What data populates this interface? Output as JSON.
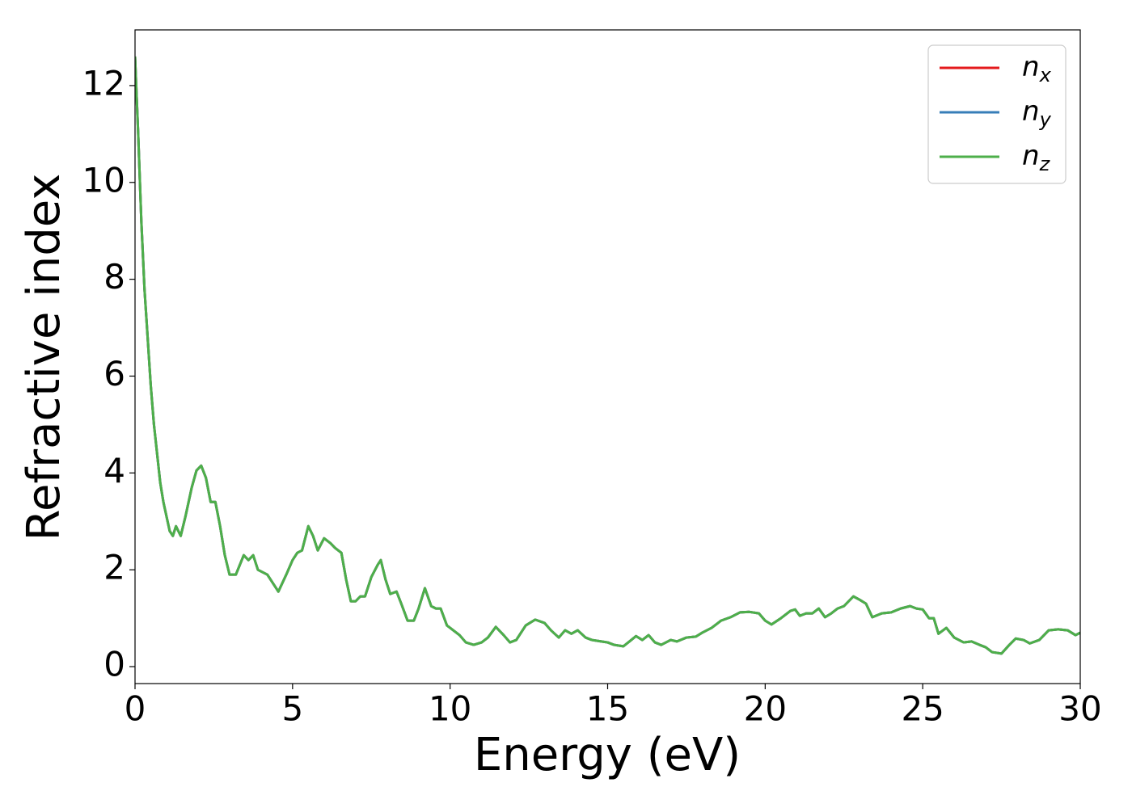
{
  "chart_data": {
    "type": "line",
    "xlabel": "Energy (eV)",
    "ylabel": "Refractive index",
    "xlim": [
      0,
      30
    ],
    "xticks": [
      0,
      5,
      10,
      15,
      20,
      25,
      30
    ],
    "ylim": [
      -0.35,
      13.15
    ],
    "yticks": [
      0,
      2,
      4,
      6,
      8,
      10,
      12
    ],
    "grid": false,
    "legend": "upper right",
    "x": [
      0,
      0.1,
      0.2,
      0.3,
      0.4,
      0.5,
      0.6,
      0.7,
      0.8,
      0.9,
      1.0,
      1.1,
      1.2,
      1.3,
      1.45,
      1.6,
      1.8,
      1.95,
      2.1,
      2.25,
      2.4,
      2.55,
      2.7,
      2.85,
      3.0,
      3.2,
      3.45,
      3.6,
      3.75,
      3.9,
      4.05,
      4.2,
      4.4,
      4.55,
      4.8,
      5.0,
      5.15,
      5.3,
      5.5,
      5.65,
      5.8,
      6.0,
      6.2,
      6.35,
      6.55,
      6.7,
      6.85,
      7.0,
      7.15,
      7.3,
      7.5,
      7.7,
      7.8,
      7.95,
      8.1,
      8.3,
      8.45,
      8.65,
      8.85,
      9.0,
      9.2,
      9.4,
      9.55,
      9.7,
      9.9,
      10.1,
      10.3,
      10.5,
      10.75,
      11.0,
      11.2,
      11.45,
      11.7,
      11.9,
      12.1,
      12.4,
      12.7,
      13.0,
      13.2,
      13.45,
      13.65,
      13.85,
      14.05,
      14.3,
      14.5,
      14.8,
      15.0,
      15.2,
      15.5,
      15.75,
      15.9,
      16.1,
      16.3,
      16.5,
      16.7,
      17.0,
      17.2,
      17.5,
      17.8,
      18.0,
      18.3,
      18.6,
      18.9,
      19.2,
      19.5,
      19.8,
      20.0,
      20.2,
      20.5,
      20.8,
      20.95,
      21.1,
      21.3,
      21.5,
      21.7,
      21.9,
      22.1,
      22.3,
      22.5,
      22.8,
      23.0,
      23.2,
      23.4,
      23.7,
      24.0,
      24.3,
      24.6,
      24.8,
      25.0,
      25.2,
      25.35,
      25.5,
      25.75,
      26.0,
      26.3,
      26.55,
      26.8,
      27.0,
      27.2,
      27.5,
      27.75,
      27.95,
      28.2,
      28.4,
      28.7,
      29.0,
      29.3,
      29.6,
      29.85,
      30.0
    ],
    "series": [
      {
        "name": "nx",
        "color": "#e41a1c",
        "values": [
          12.6,
          11,
          9.2,
          7.8,
          6.8,
          5.8,
          5.0,
          4.4,
          3.8,
          3.4,
          3.1,
          2.8,
          2.7,
          2.9,
          2.7,
          3.1,
          3.7,
          4.05,
          4.15,
          3.9,
          3.4,
          3.4,
          2.9,
          2.3,
          1.9,
          1.9,
          2.3,
          2.2,
          2.3,
          2.0,
          1.95,
          1.9,
          1.7,
          1.55,
          1.9,
          2.2,
          2.35,
          2.4,
          2.9,
          2.7,
          2.4,
          2.65,
          2.55,
          2.45,
          2.35,
          1.8,
          1.35,
          1.35,
          1.45,
          1.45,
          1.85,
          2.1,
          2.2,
          1.8,
          1.5,
          1.55,
          1.3,
          0.95,
          0.95,
          1.2,
          1.62,
          1.25,
          1.2,
          1.2,
          0.85,
          0.75,
          0.65,
          0.5,
          0.45,
          0.5,
          0.6,
          0.82,
          0.65,
          0.5,
          0.55,
          0.85,
          0.97,
          0.9,
          0.75,
          0.6,
          0.75,
          0.68,
          0.75,
          0.6,
          0.55,
          0.52,
          0.5,
          0.45,
          0.42,
          0.55,
          0.63,
          0.55,
          0.65,
          0.5,
          0.45,
          0.55,
          0.52,
          0.6,
          0.62,
          0.7,
          0.8,
          0.95,
          1.02,
          1.12,
          1.13,
          1.1,
          0.95,
          0.87,
          1.0,
          1.15,
          1.18,
          1.05,
          1.1,
          1.1,
          1.2,
          1.02,
          1.1,
          1.2,
          1.25,
          1.45,
          1.38,
          1.3,
          1.02,
          1.1,
          1.12,
          1.2,
          1.25,
          1.2,
          1.18,
          1.0,
          1.0,
          0.68,
          0.8,
          0.6,
          0.5,
          0.52,
          0.45,
          0.4,
          0.3,
          0.27,
          0.45,
          0.58,
          0.55,
          0.48,
          0.55,
          0.75,
          0.77,
          0.75,
          0.65,
          0.7
        ]
      },
      {
        "name": "ny",
        "color": "#377eb8",
        "values": [
          12.6,
          11,
          9.2,
          7.8,
          6.8,
          5.8,
          5.0,
          4.4,
          3.8,
          3.4,
          3.1,
          2.8,
          2.7,
          2.9,
          2.7,
          3.1,
          3.7,
          4.05,
          4.15,
          3.9,
          3.4,
          3.4,
          2.9,
          2.3,
          1.9,
          1.9,
          2.3,
          2.2,
          2.3,
          2.0,
          1.95,
          1.9,
          1.7,
          1.55,
          1.9,
          2.2,
          2.35,
          2.4,
          2.9,
          2.7,
          2.4,
          2.65,
          2.55,
          2.45,
          2.35,
          1.8,
          1.35,
          1.35,
          1.45,
          1.45,
          1.85,
          2.1,
          2.2,
          1.8,
          1.5,
          1.55,
          1.3,
          0.95,
          0.95,
          1.2,
          1.62,
          1.25,
          1.2,
          1.2,
          0.85,
          0.75,
          0.65,
          0.5,
          0.45,
          0.5,
          0.6,
          0.82,
          0.65,
          0.5,
          0.55,
          0.85,
          0.97,
          0.9,
          0.75,
          0.6,
          0.75,
          0.68,
          0.75,
          0.6,
          0.55,
          0.52,
          0.5,
          0.45,
          0.42,
          0.55,
          0.63,
          0.55,
          0.65,
          0.5,
          0.45,
          0.55,
          0.52,
          0.6,
          0.62,
          0.7,
          0.8,
          0.95,
          1.02,
          1.12,
          1.13,
          1.1,
          0.95,
          0.87,
          1.0,
          1.15,
          1.18,
          1.05,
          1.1,
          1.1,
          1.2,
          1.02,
          1.1,
          1.2,
          1.25,
          1.45,
          1.38,
          1.3,
          1.02,
          1.1,
          1.12,
          1.2,
          1.25,
          1.2,
          1.18,
          1.0,
          1.0,
          0.68,
          0.8,
          0.6,
          0.5,
          0.52,
          0.45,
          0.4,
          0.3,
          0.27,
          0.45,
          0.58,
          0.55,
          0.48,
          0.55,
          0.75,
          0.77,
          0.75,
          0.65,
          0.7
        ]
      },
      {
        "name": "nz",
        "color": "#4daf4a",
        "values": [
          12.6,
          11,
          9.2,
          7.8,
          6.8,
          5.8,
          5.0,
          4.4,
          3.8,
          3.4,
          3.1,
          2.8,
          2.7,
          2.9,
          2.7,
          3.1,
          3.7,
          4.05,
          4.15,
          3.9,
          3.4,
          3.4,
          2.9,
          2.3,
          1.9,
          1.9,
          2.3,
          2.2,
          2.3,
          2.0,
          1.95,
          1.9,
          1.7,
          1.55,
          1.9,
          2.2,
          2.35,
          2.4,
          2.9,
          2.7,
          2.4,
          2.65,
          2.55,
          2.45,
          2.35,
          1.8,
          1.35,
          1.35,
          1.45,
          1.45,
          1.85,
          2.1,
          2.2,
          1.8,
          1.5,
          1.55,
          1.3,
          0.95,
          0.95,
          1.2,
          1.62,
          1.25,
          1.2,
          1.2,
          0.85,
          0.75,
          0.65,
          0.5,
          0.45,
          0.5,
          0.6,
          0.82,
          0.65,
          0.5,
          0.55,
          0.85,
          0.97,
          0.9,
          0.75,
          0.6,
          0.75,
          0.68,
          0.75,
          0.6,
          0.55,
          0.52,
          0.5,
          0.45,
          0.42,
          0.55,
          0.63,
          0.55,
          0.65,
          0.5,
          0.45,
          0.55,
          0.52,
          0.6,
          0.62,
          0.7,
          0.8,
          0.95,
          1.02,
          1.12,
          1.13,
          1.1,
          0.95,
          0.87,
          1.0,
          1.15,
          1.18,
          1.05,
          1.1,
          1.1,
          1.2,
          1.02,
          1.1,
          1.2,
          1.25,
          1.45,
          1.38,
          1.3,
          1.02,
          1.1,
          1.12,
          1.2,
          1.25,
          1.2,
          1.18,
          1.0,
          1.0,
          0.68,
          0.8,
          0.6,
          0.5,
          0.52,
          0.45,
          0.4,
          0.3,
          0.27,
          0.45,
          0.58,
          0.55,
          0.48,
          0.55,
          0.75,
          0.77,
          0.75,
          0.65,
          0.7
        ]
      }
    ]
  }
}
